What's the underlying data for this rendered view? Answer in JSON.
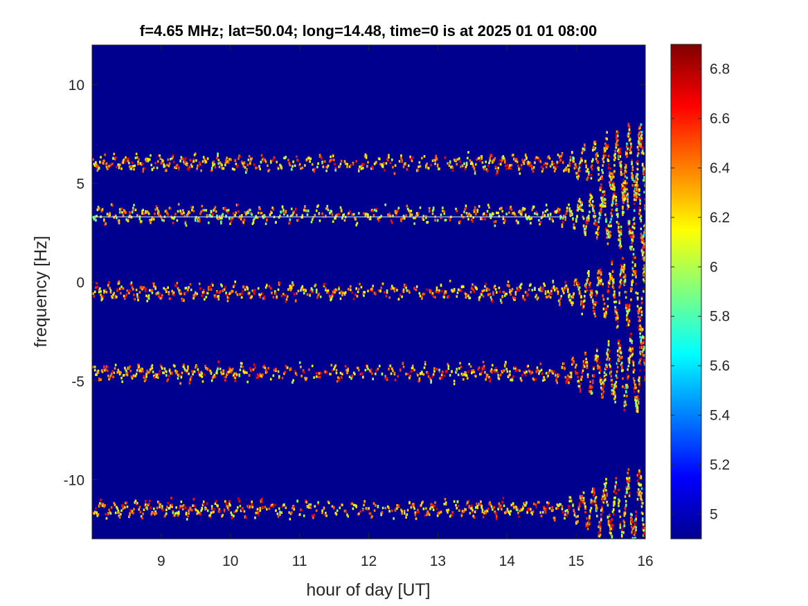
{
  "chart_data": {
    "type": "heatmap",
    "title": "f=4.65 MHz;  lat=50.04; long=14.48, time=0 is at 2025 01 01 08:00",
    "xlabel": "hour of day [UT]",
    "ylabel": "frequency [Hz]",
    "xlim": [
      8,
      16
    ],
    "ylim": [
      -13,
      12
    ],
    "x_ticks": [
      9,
      10,
      11,
      12,
      13,
      14,
      15,
      16
    ],
    "y_ticks": [
      -10,
      -5,
      0,
      5,
      10
    ],
    "x_tick_labels": [
      "9",
      "10",
      "11",
      "12",
      "13",
      "14",
      "15",
      "16"
    ],
    "y_tick_labels": [
      "-10",
      "-5",
      "0",
      "5",
      "10"
    ],
    "colormap": "jet",
    "background_color": "#00008f",
    "clim": [
      4.9,
      6.9
    ],
    "colorbar_ticks": [
      5,
      5.2,
      5.4,
      5.6,
      5.8,
      6,
      6.2,
      6.4,
      6.6,
      6.8
    ],
    "colorbar_tick_labels": [
      "5",
      "5.2",
      "5.4",
      "5.6",
      "5.8",
      "6",
      "6.2",
      "6.4",
      "6.6",
      "6.8"
    ],
    "traces": [
      {
        "center_hz": 6.0,
        "base_value": 6.3
      },
      {
        "center_hz": 3.4,
        "base_value": 6.2
      },
      {
        "center_hz": -0.5,
        "base_value": 6.3
      },
      {
        "center_hz": -4.6,
        "base_value": 6.3
      },
      {
        "center_hz": -11.5,
        "base_value": 6.3
      }
    ],
    "reference_line_hz": 3.3,
    "disturbance_start_hour": 14.7
  }
}
